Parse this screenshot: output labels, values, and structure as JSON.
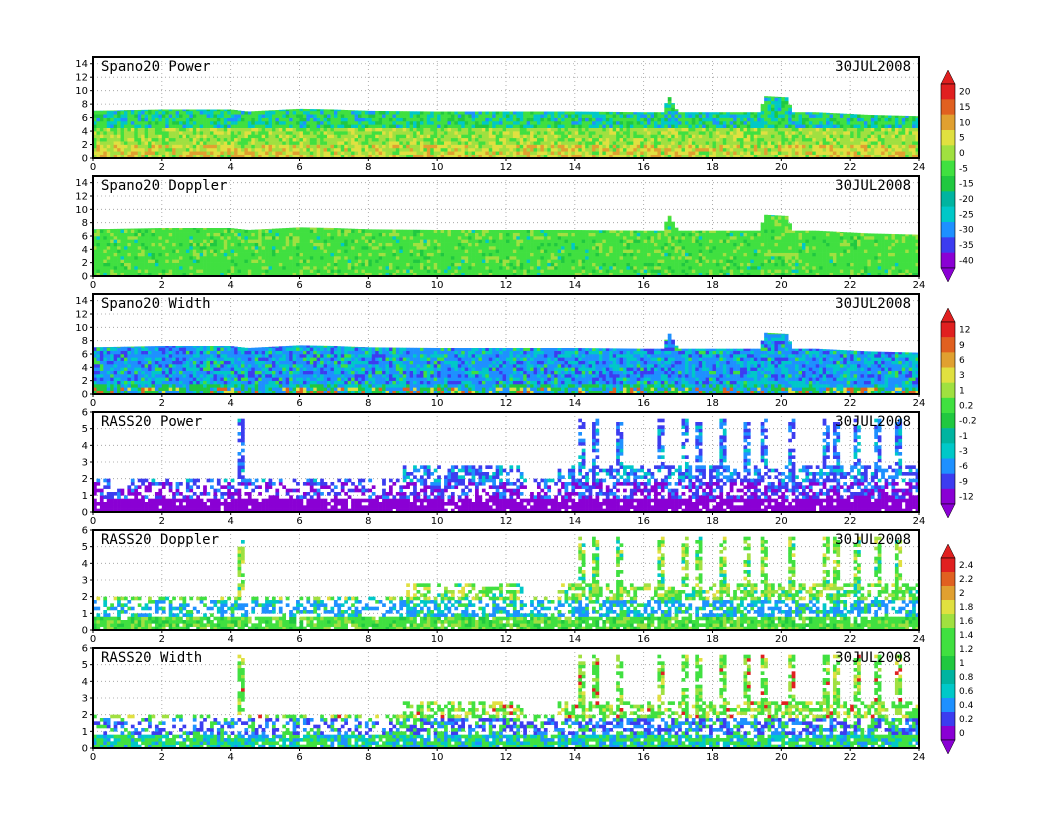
{
  "colors": {
    "radar_scale": [
      "#8a00d4",
      "#3c3cf0",
      "#1e90ff",
      "#00c8c8",
      "#00b4a0",
      "#20c840",
      "#40e040",
      "#a0e040",
      "#e0e040",
      "#e0a030",
      "#e06020",
      "#e02020"
    ],
    "width_scale": [
      "#8a00d4",
      "#3c3cf0",
      "#1e90ff",
      "#00c8c8",
      "#00b4a0",
      "#20c840",
      "#40e040",
      "#a0e040",
      "#e0e040",
      "#e0a030",
      "#e06020",
      "#e02020"
    ],
    "rass_power_scale": [
      "#8a00d4",
      "#3c3cf0",
      "#1e90ff",
      "#00c8c8",
      "#00b4a0",
      "#20c840",
      "#40e040",
      "#a0e040",
      "#e0e040",
      "#e0a030",
      "#e06020",
      "#e02020"
    ],
    "rass_doppler_scale": [
      "#8a00d4",
      "#3c3cf0",
      "#1e90ff",
      "#00c8c8",
      "#00b4a0",
      "#20c840",
      "#40e040",
      "#a0e040",
      "#e0e040",
      "#e0a030",
      "#e06020",
      "#e02020"
    ]
  },
  "colorbars": [
    {
      "id": "spano-power-doppler",
      "labels": [
        "20",
        "15",
        "10",
        "5",
        "0",
        "-5",
        "-15",
        "-20",
        "-25",
        "-30",
        "-35",
        "-40"
      ]
    },
    {
      "id": "spano-width",
      "labels": [
        "12",
        "9",
        "6",
        "3",
        "1",
        "0.2",
        "-0.2",
        "-1",
        "-3",
        "-6",
        "-9",
        "-12"
      ]
    },
    {
      "id": "rass-doppler-width",
      "labels": [
        "2.4",
        "2.2",
        "2",
        "1.8",
        "1.6",
        "1.4",
        "1.2",
        "1",
        "0.8",
        "0.6",
        "0.4",
        "0.2",
        "0"
      ]
    }
  ],
  "chart_data": [
    {
      "type": "heatmap",
      "title": "Spano20  Power",
      "date": "30JUL2008",
      "x_ticks": [
        "0",
        "2",
        "4",
        "6",
        "8",
        "10",
        "12",
        "14",
        "16",
        "18",
        "20",
        "22",
        "24"
      ],
      "xlim": [
        0,
        24
      ],
      "y_ticks": [
        "0",
        "2",
        "4",
        "6",
        "8",
        "10",
        "12",
        "14"
      ],
      "ylim": [
        0,
        15
      ],
      "grid": true,
      "colorbar": "spano-power-doppler",
      "profile": {
        "x": [
          0,
          2,
          4,
          4.5,
          6,
          7,
          8,
          10,
          12,
          14,
          16,
          16.6,
          16.7,
          17,
          18,
          19.4,
          19.5,
          20.2,
          20.3,
          21,
          22.5,
          24
        ],
        "top": [
          7.0,
          7.2,
          7.2,
          6.9,
          7.3,
          7.2,
          7.0,
          6.9,
          6.9,
          6.9,
          6.8,
          6.8,
          9.5,
          6.8,
          6.8,
          6.8,
          9.2,
          9.0,
          6.8,
          6.8,
          6.4,
          6.2
        ]
      }
    },
    {
      "type": "heatmap",
      "title": "Spano20  Doppler",
      "date": "30JUL2008",
      "x_ticks": [
        "0",
        "2",
        "4",
        "6",
        "8",
        "10",
        "12",
        "14",
        "16",
        "18",
        "20",
        "22",
        "24"
      ],
      "xlim": [
        0,
        24
      ],
      "y_ticks": [
        "0",
        "2",
        "4",
        "6",
        "8",
        "10",
        "12",
        "14"
      ],
      "ylim": [
        0,
        15
      ],
      "grid": true,
      "colorbar": "spano-power-doppler",
      "profile": {
        "x": [
          0,
          2,
          4,
          4.5,
          6,
          7,
          8,
          10,
          12,
          14,
          16,
          16.6,
          16.7,
          17,
          18,
          19.4,
          19.5,
          20.2,
          20.3,
          21,
          22.5,
          24
        ],
        "top": [
          7.0,
          7.2,
          7.2,
          6.9,
          7.3,
          7.2,
          7.0,
          6.9,
          6.9,
          6.9,
          6.8,
          6.8,
          9.5,
          6.8,
          6.8,
          6.8,
          9.2,
          9.0,
          6.8,
          6.8,
          6.4,
          6.2
        ]
      }
    },
    {
      "type": "heatmap",
      "title": "Spano20  Width",
      "date": "30JUL2008",
      "x_ticks": [
        "0",
        "2",
        "4",
        "6",
        "8",
        "10",
        "12",
        "14",
        "16",
        "18",
        "20",
        "22",
        "24"
      ],
      "xlim": [
        0,
        24
      ],
      "y_ticks": [
        "0",
        "2",
        "4",
        "6",
        "8",
        "10",
        "12",
        "14"
      ],
      "ylim": [
        0,
        15
      ],
      "grid": true,
      "colorbar": "spano-width",
      "profile": {
        "x": [
          0,
          2,
          4,
          4.5,
          6,
          7,
          8,
          10,
          12,
          14,
          16,
          16.6,
          16.7,
          17,
          18,
          19.4,
          19.5,
          20.2,
          20.3,
          21,
          22.5,
          24
        ],
        "top": [
          7.0,
          7.2,
          7.2,
          6.9,
          7.3,
          7.2,
          7.0,
          6.9,
          6.9,
          6.9,
          6.8,
          6.8,
          9.5,
          6.8,
          6.8,
          6.8,
          9.2,
          9.0,
          6.8,
          6.8,
          6.4,
          6.2
        ]
      }
    },
    {
      "type": "heatmap",
      "title": "RASS20  Power",
      "date": "30JUL2008",
      "x_ticks": [
        "0",
        "2",
        "4",
        "6",
        "8",
        "10",
        "12",
        "14",
        "16",
        "18",
        "20",
        "22",
        "24"
      ],
      "xlim": [
        0,
        24
      ],
      "y_ticks": [
        "0",
        "1",
        "2",
        "3",
        "4",
        "5",
        "6"
      ],
      "ylim": [
        0,
        6
      ],
      "grid": true,
      "colorbar": "spano-width"
    },
    {
      "type": "heatmap",
      "title": "RASS20  Doppler",
      "date": "30JUL2008",
      "x_ticks": [
        "0",
        "2",
        "4",
        "6",
        "8",
        "10",
        "12",
        "14",
        "16",
        "18",
        "20",
        "22",
        "24"
      ],
      "xlim": [
        0,
        24
      ],
      "y_ticks": [
        "0",
        "1",
        "2",
        "3",
        "4",
        "5",
        "6"
      ],
      "ylim": [
        0,
        6
      ],
      "grid": true,
      "colorbar": "rass-doppler-width"
    },
    {
      "type": "heatmap",
      "title": "RASS20  Width",
      "date": "30JUL2008",
      "x_ticks": [
        "0",
        "2",
        "4",
        "6",
        "8",
        "10",
        "12",
        "14",
        "16",
        "18",
        "20",
        "22",
        "24"
      ],
      "xlim": [
        0,
        24
      ],
      "y_ticks": [
        "0",
        "1",
        "2",
        "3",
        "4",
        "5",
        "6"
      ],
      "ylim": [
        0,
        6
      ],
      "grid": true,
      "colorbar": "rass-doppler-width"
    }
  ]
}
